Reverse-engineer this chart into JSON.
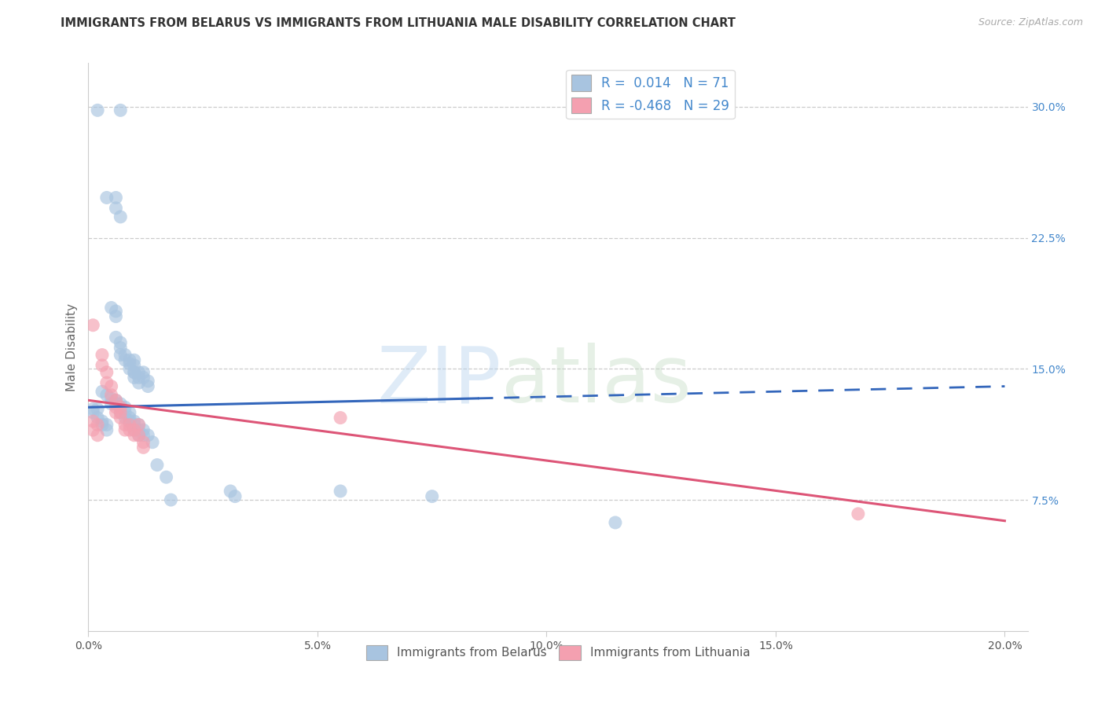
{
  "title": "IMMIGRANTS FROM BELARUS VS IMMIGRANTS FROM LITHUANIA MALE DISABILITY CORRELATION CHART",
  "source": "Source: ZipAtlas.com",
  "ylabel": "Male Disability",
  "watermark": "ZIPatlas",
  "xlim": [
    0.0,
    0.205
  ],
  "ylim": [
    0.0,
    0.325
  ],
  "xticks": [
    0.0,
    0.05,
    0.1,
    0.15,
    0.2
  ],
  "yticks": [
    0.075,
    0.15,
    0.225,
    0.3
  ],
  "ytick_labels": [
    "7.5%",
    "15.0%",
    "22.5%",
    "30.0%"
  ],
  "xtick_labels": [
    "0.0%",
    "5.0%",
    "10.0%",
    "15.0%",
    "20.0%"
  ],
  "legend_labels": [
    "Immigrants from Belarus",
    "Immigrants from Lithuania"
  ],
  "legend_r_values": [
    "0.014",
    "-0.468"
  ],
  "legend_n_values": [
    "71",
    "29"
  ],
  "blue_color": "#a8c4e0",
  "pink_color": "#f4a0b0",
  "blue_line_color": "#3366bb",
  "pink_line_color": "#dd5577",
  "blue_scatter": [
    [
      0.002,
      0.298
    ],
    [
      0.007,
      0.298
    ],
    [
      0.004,
      0.248
    ],
    [
      0.006,
      0.248
    ],
    [
      0.006,
      0.242
    ],
    [
      0.007,
      0.237
    ],
    [
      0.005,
      0.185
    ],
    [
      0.006,
      0.183
    ],
    [
      0.006,
      0.18
    ],
    [
      0.006,
      0.168
    ],
    [
      0.007,
      0.165
    ],
    [
      0.007,
      0.162
    ],
    [
      0.007,
      0.158
    ],
    [
      0.008,
      0.155
    ],
    [
      0.008,
      0.158
    ],
    [
      0.009,
      0.153
    ],
    [
      0.009,
      0.15
    ],
    [
      0.009,
      0.155
    ],
    [
      0.01,
      0.148
    ],
    [
      0.01,
      0.145
    ],
    [
      0.01,
      0.148
    ],
    [
      0.01,
      0.152
    ],
    [
      0.01,
      0.155
    ],
    [
      0.011,
      0.145
    ],
    [
      0.011,
      0.148
    ],
    [
      0.011,
      0.142
    ],
    [
      0.012,
      0.148
    ],
    [
      0.012,
      0.145
    ],
    [
      0.013,
      0.143
    ],
    [
      0.013,
      0.14
    ],
    [
      0.003,
      0.137
    ],
    [
      0.004,
      0.135
    ],
    [
      0.005,
      0.133
    ],
    [
      0.005,
      0.13
    ],
    [
      0.006,
      0.132
    ],
    [
      0.006,
      0.13
    ],
    [
      0.007,
      0.13
    ],
    [
      0.007,
      0.128
    ],
    [
      0.007,
      0.125
    ],
    [
      0.008,
      0.128
    ],
    [
      0.008,
      0.125
    ],
    [
      0.008,
      0.122
    ],
    [
      0.009,
      0.125
    ],
    [
      0.009,
      0.122
    ],
    [
      0.009,
      0.12
    ],
    [
      0.01,
      0.12
    ],
    [
      0.01,
      0.118
    ],
    [
      0.01,
      0.115
    ],
    [
      0.011,
      0.118
    ],
    [
      0.011,
      0.115
    ],
    [
      0.011,
      0.112
    ],
    [
      0.012,
      0.115
    ],
    [
      0.012,
      0.112
    ],
    [
      0.013,
      0.112
    ],
    [
      0.001,
      0.127
    ],
    [
      0.001,
      0.125
    ],
    [
      0.002,
      0.127
    ],
    [
      0.002,
      0.122
    ],
    [
      0.003,
      0.12
    ],
    [
      0.003,
      0.118
    ],
    [
      0.004,
      0.118
    ],
    [
      0.004,
      0.115
    ],
    [
      0.014,
      0.108
    ],
    [
      0.015,
      0.095
    ],
    [
      0.017,
      0.088
    ],
    [
      0.018,
      0.075
    ],
    [
      0.031,
      0.08
    ],
    [
      0.032,
      0.077
    ],
    [
      0.055,
      0.08
    ],
    [
      0.075,
      0.077
    ],
    [
      0.115,
      0.062
    ]
  ],
  "pink_scatter": [
    [
      0.001,
      0.175
    ],
    [
      0.003,
      0.158
    ],
    [
      0.003,
      0.152
    ],
    [
      0.004,
      0.148
    ],
    [
      0.004,
      0.142
    ],
    [
      0.005,
      0.14
    ],
    [
      0.005,
      0.135
    ],
    [
      0.006,
      0.132
    ],
    [
      0.006,
      0.128
    ],
    [
      0.006,
      0.125
    ],
    [
      0.007,
      0.128
    ],
    [
      0.007,
      0.125
    ],
    [
      0.007,
      0.122
    ],
    [
      0.008,
      0.118
    ],
    [
      0.008,
      0.115
    ],
    [
      0.009,
      0.118
    ],
    [
      0.009,
      0.115
    ],
    [
      0.01,
      0.115
    ],
    [
      0.01,
      0.112
    ],
    [
      0.011,
      0.118
    ],
    [
      0.011,
      0.112
    ],
    [
      0.012,
      0.108
    ],
    [
      0.012,
      0.105
    ],
    [
      0.001,
      0.12
    ],
    [
      0.001,
      0.115
    ],
    [
      0.002,
      0.118
    ],
    [
      0.002,
      0.112
    ],
    [
      0.055,
      0.122
    ],
    [
      0.168,
      0.067
    ]
  ],
  "blue_line_x0": 0.0,
  "blue_line_y0": 0.128,
  "blue_line_x1": 0.2,
  "blue_line_y1": 0.14,
  "blue_dash_from": 0.085,
  "pink_line_x0": 0.0,
  "pink_line_y0": 0.132,
  "pink_line_x1": 0.2,
  "pink_line_y1": 0.063
}
